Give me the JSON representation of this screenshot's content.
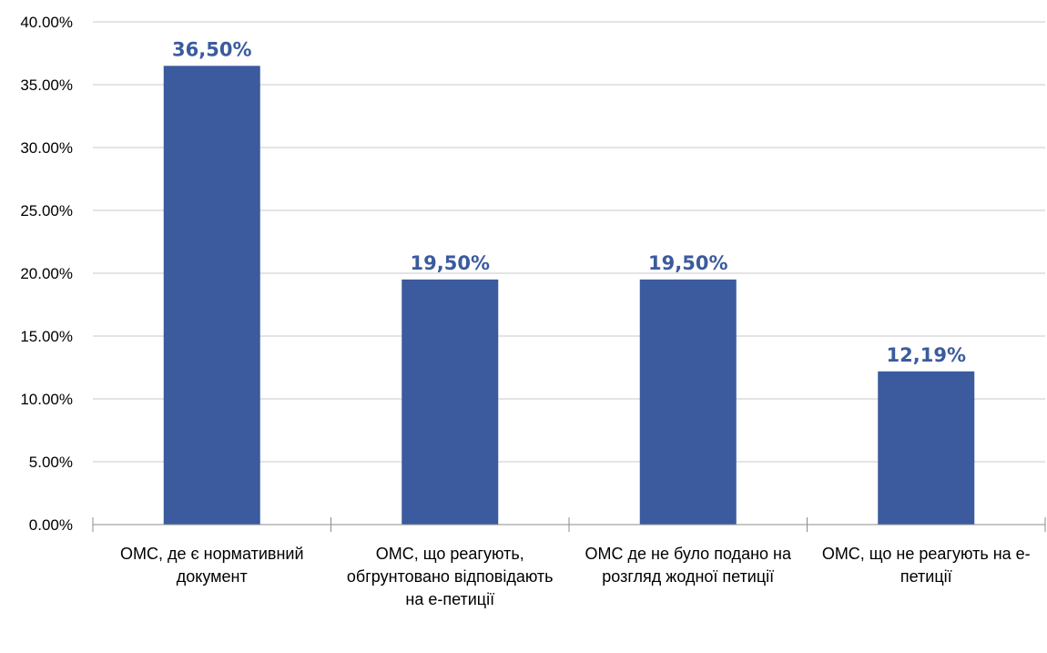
{
  "chart_data": {
    "type": "bar",
    "categories": [
      "ОМС, де є нормативний документ",
      "ОМС, що реагують, обгрунтовано відповідають на е-петиції",
      "ОМС де не було подано на розгляд жодної петиції",
      "ОМС, що не реагують на е-петиції"
    ],
    "values": [
      36.5,
      19.5,
      19.5,
      12.19
    ],
    "data_labels": [
      "36,50%",
      "19,50%",
      "19,50%",
      "12,19%"
    ],
    "y_ticks": [
      "0.00%",
      "5.00%",
      "10.00%",
      "15.00%",
      "20.00%",
      "25.00%",
      "30.00%",
      "35.00%",
      "40.00%"
    ],
    "ylim": [
      0,
      40
    ],
    "grid": true,
    "title": "",
    "xlabel": "",
    "ylabel": "",
    "bar_color": "#3B5B9E",
    "data_label_color": "#3B5B9E",
    "grid_color": "#C8C8C8",
    "axis_color": "#8C8C8C"
  }
}
